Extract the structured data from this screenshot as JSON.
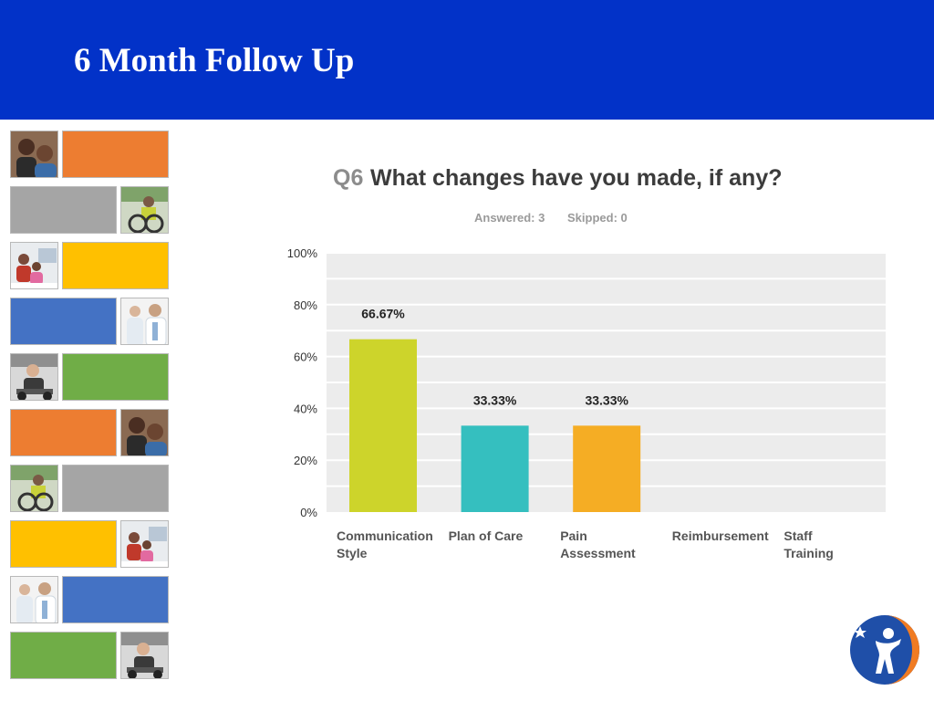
{
  "slide": {
    "title": "6 Month Follow Up"
  },
  "colors": {
    "header": "#0232c8",
    "tile_orange": "#ed7d31",
    "tile_gray": "#a5a5a5",
    "tile_yellow": "#ffc000",
    "tile_blue": "#4472c4",
    "tile_green": "#70ad47"
  },
  "decor_rows": [
    {
      "photo": "people-photo",
      "tile": "orange"
    },
    {
      "photo": "wheelchair-photo",
      "tile": "gray"
    },
    {
      "photo": "family-photo",
      "tile": "yellow"
    },
    {
      "photo": "doctors-photo",
      "tile": "blue"
    },
    {
      "photo": "patient-photo",
      "tile": "green"
    },
    {
      "photo": "people-photo",
      "tile": "orange"
    },
    {
      "photo": "wheelchair-photo",
      "tile": "gray"
    },
    {
      "photo": "family-photo",
      "tile": "yellow"
    },
    {
      "photo": "doctors-photo",
      "tile": "blue"
    },
    {
      "photo": "patient-photo",
      "tile": "green"
    }
  ],
  "chart_data": {
    "type": "bar",
    "question_number": "Q6",
    "title": "What changes have you made, if any?",
    "answered": "Answered: 3",
    "skipped": "Skipped: 0",
    "categories": [
      "Communication Style",
      "Plan of Care",
      "Pain Assessment",
      "Reimbursement",
      "Staff Training"
    ],
    "category_label_lines": [
      [
        "Communication",
        "Style"
      ],
      [
        "Plan of Care"
      ],
      [
        "Pain",
        "Assessment"
      ],
      [
        "Reimbursement"
      ],
      [
        "Staff",
        "Training"
      ]
    ],
    "values": [
      66.67,
      33.33,
      33.33,
      0,
      0
    ],
    "data_labels": [
      "66.67%",
      "33.33%",
      "33.33%",
      "",
      ""
    ],
    "bar_colors": [
      "#cdd42b",
      "#35bfbf",
      "#f5ad24",
      "#9b9b9b",
      "#9b9b9b"
    ],
    "ylim": [
      0,
      100
    ],
    "yticks": [
      0,
      20,
      40,
      60,
      80,
      100
    ],
    "ytick_labels": [
      "0%",
      "20%",
      "40%",
      "60%",
      "80%",
      "100%"
    ],
    "grid": true,
    "xlabel": "",
    "ylabel": ""
  },
  "logo": {
    "icon": "person-star-logo-icon"
  }
}
